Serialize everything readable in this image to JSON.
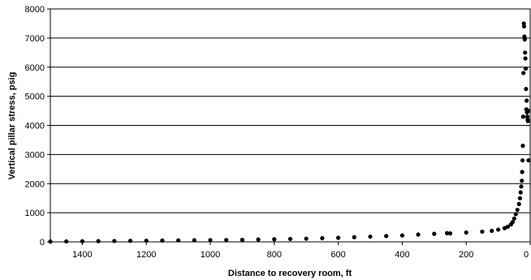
{
  "chart_data": {
    "type": "scatter",
    "title": "",
    "xlabel": "Distance to recovery room, ft",
    "ylabel": "Vertical pillar stress, psig",
    "xlim": [
      1500,
      0
    ],
    "x_reversed": true,
    "ylim": [
      0,
      8000
    ],
    "grid": "horizontal",
    "x_ticks": [
      1400,
      1200,
      1000,
      800,
      600,
      400,
      200,
      0
    ],
    "x_tick_labels": [
      "1400",
      "1200",
      "1000",
      "800",
      "600",
      "400",
      "200",
      "0"
    ],
    "y_ticks": [
      0,
      1000,
      2000,
      3000,
      4000,
      5000,
      6000,
      7000,
      8000
    ],
    "y_tick_labels": [
      "0",
      "1000",
      "2000",
      "3000",
      "4000",
      "5000",
      "6000",
      "7000",
      "8000"
    ],
    "marker_color": "#000000",
    "series": [
      {
        "x": [
          1500,
          1450,
          1400,
          1350,
          1300,
          1250,
          1200,
          1150,
          1100,
          1050,
          1000,
          950,
          900,
          850,
          800,
          750,
          700,
          650,
          600,
          550,
          500,
          450,
          400,
          350,
          300,
          260,
          250,
          200,
          150,
          120,
          100,
          80,
          70,
          60,
          55,
          50,
          45,
          40,
          35,
          32,
          30,
          28,
          26,
          25,
          24,
          23,
          22,
          21,
          20,
          19,
          18,
          17,
          16,
          15,
          14,
          13,
          12,
          11,
          10,
          9,
          8,
          7,
          6,
          5
        ],
        "y": [
          10,
          15,
          20,
          25,
          30,
          35,
          40,
          45,
          50,
          55,
          60,
          65,
          70,
          80,
          90,
          100,
          110,
          125,
          140,
          160,
          180,
          200,
          220,
          250,
          275,
          300,
          290,
          320,
          350,
          380,
          420,
          470,
          520,
          600,
          680,
          800,
          950,
          1100,
          1300,
          1500,
          1700,
          1900,
          2100,
          2400,
          2800,
          3300,
          4300,
          5800,
          7500,
          7400,
          7050,
          6950,
          6500,
          6300,
          5950,
          5250,
          4550,
          4850,
          4450,
          4300,
          4200,
          4150,
          4500,
          2800
        ]
      }
    ]
  }
}
